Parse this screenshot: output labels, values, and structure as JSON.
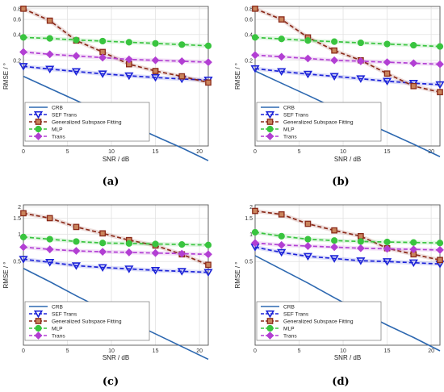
{
  "figure": {
    "captions": [
      "(a)",
      "(b)",
      "(c)",
      "(d)"
    ]
  },
  "series_styles": {
    "CRB": {
      "color": "#2d68b0",
      "marker": "none"
    },
    "SEF Trans": {
      "color": "#1c23d8",
      "marker": "triangle-down"
    },
    "Generalized Subspace Fitting": {
      "color": "#8b2a1a",
      "marker": "square"
    },
    "MLP": {
      "color": "#39c43f",
      "marker": "circle"
    },
    "Trans": {
      "color": "#b23fd3",
      "marker": "diamond"
    }
  },
  "chart_data": [
    {
      "type": "line",
      "xlabel": "SNR / dB",
      "ylabel": "RMSE / °",
      "yscale": "log",
      "grid": true,
      "legend_position": "bottom-left",
      "xlim": [
        0,
        21
      ],
      "ylim": [
        0.02,
        0.85
      ],
      "xticks": [
        0,
        5,
        10,
        15,
        20
      ],
      "xticklabels": [
        "0",
        "5",
        "10",
        "15",
        "20"
      ],
      "yticks": [
        0.2,
        0.4,
        0.6,
        0.8
      ],
      "yticklabels": [
        "0.2",
        "0.4",
        "0.6",
        "0.8"
      ],
      "x": [
        0,
        3,
        6,
        9,
        12,
        15,
        18,
        21
      ],
      "series": [
        {
          "name": "CRB",
          "values": [
            0.13,
            0.094,
            0.068,
            0.049,
            0.036,
            0.026,
            0.019,
            0.0135
          ]
        },
        {
          "name": "SEF Trans",
          "values": [
            0.17,
            0.158,
            0.148,
            0.139,
            0.132,
            0.126,
            0.121,
            0.118
          ]
        },
        {
          "name": "Generalized Subspace Fitting",
          "values": [
            0.8,
            0.58,
            0.34,
            0.25,
            0.18,
            0.15,
            0.13,
            0.11
          ]
        },
        {
          "name": "MLP",
          "values": [
            0.37,
            0.36,
            0.345,
            0.335,
            0.325,
            0.315,
            0.305,
            0.295
          ]
        },
        {
          "name": "Trans",
          "values": [
            0.25,
            0.235,
            0.225,
            0.215,
            0.205,
            0.2,
            0.195,
            0.19
          ]
        }
      ]
    },
    {
      "type": "line",
      "xlabel": "SNR / dB",
      "ylabel": "RMSE / °",
      "yscale": "log",
      "grid": true,
      "legend_position": "bottom-left",
      "xlim": [
        0,
        21
      ],
      "ylim": [
        0.02,
        0.85
      ],
      "xticks": [
        0,
        5,
        10,
        15,
        20
      ],
      "xticklabels": [
        "0",
        "5",
        "10",
        "15",
        "20"
      ],
      "yticks": [
        0.2,
        0.4,
        0.6,
        0.8
      ],
      "yticklabels": [
        "0.2",
        "0.4",
        "0.6",
        "0.8"
      ],
      "x": [
        0,
        3,
        6,
        9,
        12,
        15,
        18,
        21
      ],
      "series": [
        {
          "name": "CRB",
          "values": [
            0.15,
            0.108,
            0.078,
            0.056,
            0.04,
            0.029,
            0.021,
            0.015
          ]
        },
        {
          "name": "SEF Trans",
          "values": [
            0.16,
            0.148,
            0.138,
            0.13,
            0.122,
            0.114,
            0.108,
            0.104
          ]
        },
        {
          "name": "Generalized Subspace Fitting",
          "values": [
            0.8,
            0.6,
            0.37,
            0.26,
            0.2,
            0.14,
            0.1,
            0.085
          ]
        },
        {
          "name": "MLP",
          "values": [
            0.37,
            0.355,
            0.34,
            0.33,
            0.32,
            0.31,
            0.3,
            0.29
          ]
        },
        {
          "name": "Trans",
          "values": [
            0.23,
            0.22,
            0.21,
            0.2,
            0.195,
            0.19,
            0.185,
            0.18
          ]
        }
      ]
    },
    {
      "type": "line",
      "xlabel": "SNR / dB",
      "ylabel": "RMSE / °",
      "yscale": "log",
      "grid": true,
      "legend_position": "bottom-left",
      "xlim": [
        0,
        21
      ],
      "ylim": [
        0.06,
        2.1
      ],
      "xticks": [
        0,
        5,
        10,
        15,
        20
      ],
      "xticklabels": [
        "0",
        "5",
        "10",
        "15",
        "20"
      ],
      "yticks": [
        0.5,
        1,
        1.5,
        2
      ],
      "yticklabels": [
        "0.5",
        "1",
        "1.5",
        "2"
      ],
      "x": [
        0,
        3,
        6,
        9,
        12,
        15,
        18,
        21
      ],
      "series": [
        {
          "name": "CRB",
          "values": [
            0.42,
            0.3,
            0.21,
            0.15,
            0.11,
            0.08,
            0.058,
            0.042
          ]
        },
        {
          "name": "SEF Trans",
          "values": [
            0.53,
            0.49,
            0.45,
            0.43,
            0.415,
            0.4,
            0.39,
            0.38
          ]
        },
        {
          "name": "Generalized Subspace Fitting",
          "values": [
            1.7,
            1.5,
            1.2,
            1.02,
            0.86,
            0.75,
            0.6,
            0.46
          ]
        },
        {
          "name": "MLP",
          "values": [
            0.93,
            0.88,
            0.83,
            0.8,
            0.79,
            0.78,
            0.77,
            0.76
          ]
        },
        {
          "name": "Trans",
          "values": [
            0.72,
            0.68,
            0.655,
            0.64,
            0.63,
            0.62,
            0.61,
            0.6
          ]
        }
      ]
    },
    {
      "type": "line",
      "xlabel": "SNR / dB",
      "ylabel": "RMSE / °",
      "yscale": "log",
      "grid": true,
      "legend_position": "bottom-left",
      "xlim": [
        0,
        21
      ],
      "ylim": [
        0.06,
        2.1
      ],
      "xticks": [
        0,
        5,
        10,
        15,
        20
      ],
      "xticklabels": [
        "0",
        "5",
        "10",
        "15",
        "20"
      ],
      "yticks": [
        0.5,
        1,
        1.5,
        2
      ],
      "yticklabels": [
        "0.5",
        "1",
        "1.5",
        "2"
      ],
      "x": [
        0,
        3,
        6,
        9,
        12,
        15,
        18,
        21
      ],
      "series": [
        {
          "name": "CRB",
          "values": [
            0.58,
            0.41,
            0.29,
            0.2,
            0.14,
            0.1,
            0.073,
            0.052
          ]
        },
        {
          "name": "SEF Trans",
          "values": [
            0.72,
            0.63,
            0.57,
            0.54,
            0.51,
            0.5,
            0.485,
            0.47
          ]
        },
        {
          "name": "Generalized Subspace Fitting",
          "values": [
            1.8,
            1.65,
            1.3,
            1.1,
            0.95,
            0.7,
            0.6,
            0.52
          ]
        },
        {
          "name": "MLP",
          "values": [
            1.05,
            0.95,
            0.88,
            0.85,
            0.83,
            0.82,
            0.81,
            0.8
          ]
        },
        {
          "name": "Trans",
          "values": [
            0.8,
            0.76,
            0.74,
            0.72,
            0.7,
            0.69,
            0.68,
            0.67
          ]
        }
      ]
    }
  ]
}
